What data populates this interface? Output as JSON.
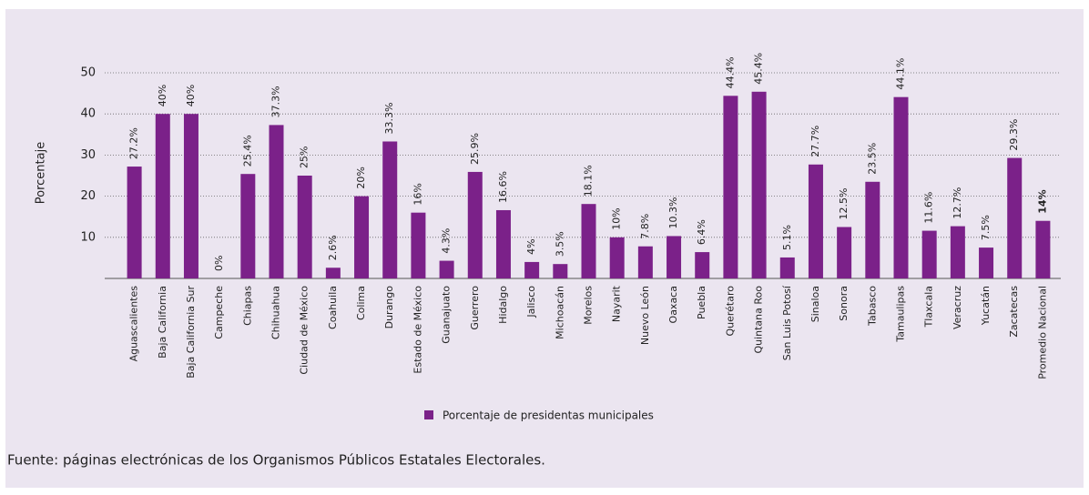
{
  "chart_data": {
    "type": "bar",
    "y_label": "Porcentaje",
    "categories": [
      "Aguascalientes",
      "Baja California",
      "Baja California Sur",
      "Campeche",
      "Chiapas",
      "Chihuahua",
      "Ciudad de México",
      "Coahuila",
      "Colima",
      "Durango",
      "Estado de México",
      "Guanajuato",
      "Guerrero",
      "Hidalgo",
      "Jalisco",
      "Michoacán",
      "Morelos",
      "Nayarit",
      "Nuevo León",
      "Oaxaca",
      "Puebla",
      "Querétaro",
      "Quintana Roo",
      "San Luis Potosí",
      "Sinaloa",
      "Sonora",
      "Tabasco",
      "Tamaulipas",
      "Tlaxcala",
      "Veracruz",
      "Yucatán",
      "Zacatecas",
      "Promedio Nacional"
    ],
    "series": [
      {
        "name": "Porcentaje de presidentas municipales",
        "color": "#7b2189",
        "values": [
          27.2,
          40,
          40,
          0,
          25.4,
          37.3,
          25,
          2.6,
          20,
          33.3,
          16,
          4.3,
          25.9,
          16.6,
          4,
          3.5,
          18.1,
          10,
          7.8,
          10.3,
          6.4,
          44.4,
          45.4,
          5.1,
          27.7,
          12.5,
          23.5,
          44.1,
          11.6,
          12.7,
          7.5,
          29.3,
          14
        ],
        "value_labels": [
          "27.2%",
          "40%",
          "40%",
          "0%",
          "25.4%",
          "37.3%",
          "25%",
          "2.6%",
          "20%",
          "33.3%",
          "16%",
          "4.3%",
          "25.9%",
          "16.6%",
          "4%",
          "3.5%",
          "18.1%",
          "10%",
          "7.8%",
          "10.3%",
          "6.4%",
          "44.4%",
          "45.4%",
          "5.1%",
          "27.7%",
          "12.5%",
          "23.5%",
          "44.1%",
          "11.6%",
          "12.7%",
          "7.5%",
          "29.3%",
          "14%"
        ]
      }
    ],
    "ylim": [
      0,
      50
    ],
    "yticks": [
      10,
      20,
      30,
      40,
      50
    ],
    "grid": true,
    "legend": "bottom",
    "source": "Fuente: páginas electrónicas de los Organismos Públicos Estatales Electorales."
  }
}
